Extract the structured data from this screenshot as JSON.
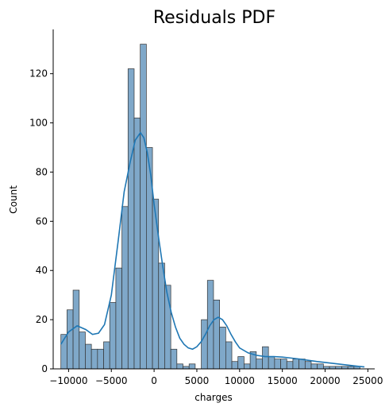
{
  "chart_data": {
    "type": "bar",
    "subtype": "histogram-with-kde",
    "title": "Residuals PDF",
    "xlabel": "charges",
    "ylabel": "Count",
    "xlim": [
      -11800,
      25800
    ],
    "ylim": [
      0,
      138
    ],
    "xticks": [
      -10000,
      -5000,
      0,
      5000,
      10000,
      15000,
      20000,
      25000
    ],
    "xtick_labels": [
      "−10000",
      "−5000",
      "0",
      "5000",
      "10000",
      "15000",
      "20000",
      "25000"
    ],
    "yticks": [
      0,
      20,
      40,
      60,
      80,
      100,
      120
    ],
    "ytick_labels": [
      "0",
      "20",
      "40",
      "60",
      "80",
      "100",
      "120"
    ],
    "grid": false,
    "bar_color": "#7fa8c9",
    "bar_edge_color": "#333333",
    "line_color": "#1f77b4",
    "bins": {
      "start": -10900,
      "width": 714,
      "counts": [
        14,
        24,
        32,
        15,
        10,
        8,
        8,
        11,
        27,
        41,
        66,
        122,
        102,
        132,
        90,
        69,
        43,
        34,
        8,
        2,
        1,
        2,
        0,
        20,
        36,
        28,
        17,
        11,
        3,
        5,
        2,
        7,
        4,
        9,
        5,
        4,
        4,
        3,
        4,
        4,
        3,
        2,
        2,
        1,
        1,
        1,
        1,
        1,
        1
      ]
    },
    "kde": {
      "x": [
        -10900,
        -10000,
        -9000,
        -8000,
        -7200,
        -6500,
        -5800,
        -5000,
        -4200,
        -3500,
        -2800,
        -2200,
        -1600,
        -1200,
        -800,
        -400,
        0,
        500,
        1000,
        1500,
        2000,
        2500,
        3000,
        3500,
        4000,
        4500,
        5000,
        5500,
        6000,
        6500,
        7000,
        7500,
        8000,
        8500,
        9000,
        9500,
        10000,
        11000,
        12000,
        13000,
        14000,
        15000,
        16000,
        17000,
        18000,
        19000,
        20000,
        21000,
        22000,
        23000,
        24000,
        24600
      ],
      "y": [
        10,
        15,
        17.5,
        16,
        14,
        14.5,
        18,
        30,
        52,
        72,
        84,
        93,
        96,
        94,
        88,
        79,
        67,
        54,
        42,
        31,
        23,
        17,
        12.5,
        10,
        8.5,
        8,
        9,
        11,
        14,
        17.5,
        20,
        21,
        20,
        17.5,
        14,
        11,
        8.5,
        6.5,
        5.5,
        5,
        5,
        4.8,
        4.4,
        4,
        3.5,
        3,
        2.6,
        2.2,
        1.8,
        1.4,
        1,
        0.8
      ]
    }
  }
}
